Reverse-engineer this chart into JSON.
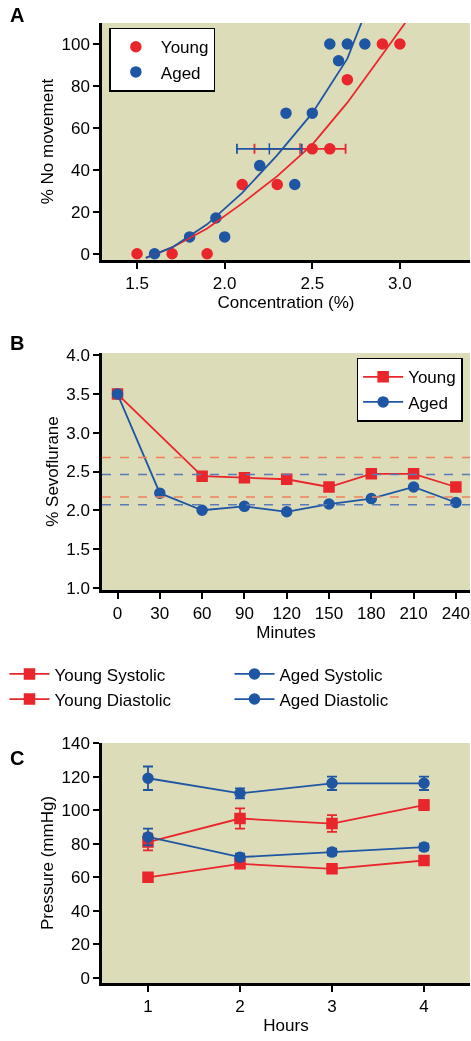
{
  "chart_data": [
    {
      "type": "scatter",
      "title": "A",
      "xlabel": "Concentration (%)",
      "ylabel": "% No movement",
      "legend": "top left",
      "marker": "circle",
      "xlim": [
        1.3,
        3.4
      ],
      "ylim": [
        -3,
        110
      ],
      "xticks": [
        1.5,
        {
          "value": 2,
          "label": "2.0"
        },
        2.5,
        {
          "value": 3,
          "label": "3.0"
        }
      ],
      "yticks": [
        0,
        20,
        40,
        60,
        80,
        100
      ],
      "series": [
        {
          "name": "Young",
          "color": "#e8262b",
          "x": [
            1.5,
            1.7,
            1.9,
            2.1,
            2.3,
            2.5,
            2.6,
            2.7,
            2.9,
            3.0
          ],
          "values": [
            0,
            0,
            0,
            33,
            33,
            50,
            50,
            83,
            100,
            100
          ]
        },
        {
          "name": "Aged",
          "color": "#1f56a3",
          "x": [
            1.6,
            1.8,
            1.95,
            2.0,
            2.2,
            2.35,
            2.4,
            2.5,
            2.6,
            2.65,
            2.7,
            2.8
          ],
          "values": [
            0,
            8,
            17,
            8,
            42,
            67,
            33,
            67,
            100,
            92,
            100,
            100
          ]
        },
        {
          "type": "line",
          "color": "#e8262b",
          "marker": "none",
          "x": [
            1.55,
            1.7,
            1.9,
            2.1,
            2.3,
            2.5,
            2.7,
            2.9,
            3.03
          ],
          "values": [
            -2,
            3,
            12,
            24,
            37,
            52,
            72,
            95,
            110
          ]
        },
        {
          "type": "line",
          "color": "#1f56a3",
          "marker": "none",
          "x": [
            1.55,
            1.7,
            1.9,
            2.1,
            2.3,
            2.5,
            2.7,
            2.78
          ],
          "values": [
            -2,
            3,
            14,
            29,
            47,
            67,
            93,
            110
          ]
        },
        {
          "type": "scatter",
          "color": "#e8262b",
          "marker": "cross",
          "x": [
            2.43
          ],
          "values": [
            50
          ],
          "xerrors": [
            [
              2.17,
              2.69
            ]
          ]
        },
        {
          "type": "scatter",
          "color": "#1f56a3",
          "marker": "cross",
          "x": [
            2.255
          ],
          "values": [
            50
          ],
          "xerrors": [
            [
              2.07,
              2.44
            ]
          ]
        }
      ]
    },
    {
      "type": "line",
      "title": "B",
      "xlabel": "Minutes",
      "ylabel": "% Sevoflurane",
      "legend": "top right",
      "xlim": [
        -11,
        250
      ],
      "ylim": [
        0.97,
        4.03
      ],
      "xticks": [
        0,
        30,
        60,
        90,
        120,
        150,
        180,
        210,
        240
      ],
      "yticks": [
        {
          "value": 1,
          "label": "1.0"
        },
        1.5,
        {
          "value": 2,
          "label": "2.0"
        },
        2.5,
        {
          "value": 3,
          "label": "3.0"
        },
        3.5,
        {
          "value": 4,
          "label": "4.0"
        }
      ],
      "series": [
        {
          "name": "Young",
          "color": "#e8262b",
          "marker": "square",
          "x": [
            0,
            60,
            90,
            120,
            150,
            180,
            210,
            240
          ],
          "values": [
            3.5,
            2.44,
            2.42,
            2.4,
            2.3,
            2.47,
            2.47,
            2.3
          ]
        },
        {
          "name": "Aged",
          "color": "#1f56a3",
          "marker": "circle",
          "x": [
            0,
            30,
            60,
            90,
            120,
            150,
            180,
            210,
            240
          ],
          "values": [
            3.5,
            2.22,
            2.0,
            2.05,
            1.98,
            2.08,
            2.15,
            2.3,
            2.1
          ]
        }
      ],
      "ref_lines": [
        {
          "axis": "y",
          "value": 2.68,
          "color": "#f0805a",
          "line_style": "dashed"
        },
        {
          "axis": "y",
          "value": 2.17,
          "color": "#f0805a",
          "line_style": "dashed"
        },
        {
          "axis": "y",
          "value": 2.46,
          "color": "#5a7ab8",
          "line_style": "dashed"
        },
        {
          "axis": "y",
          "value": 2.07,
          "color": "#5a7ab8",
          "line_style": "dashed"
        }
      ]
    },
    {
      "type": "line",
      "title": "C",
      "xlabel": "Hours",
      "ylabel": "Pressure (mmHg)",
      "legend": "top",
      "xlim": [
        0.5,
        4.5
      ],
      "ylim": [
        -3,
        140
      ],
      "xticks": [
        1,
        2,
        3,
        4
      ],
      "yticks": [
        0,
        20,
        40,
        60,
        80,
        100,
        120,
        140
      ],
      "x": [
        1,
        2,
        3,
        4
      ],
      "series": [
        {
          "name": "Young Systolic",
          "color": "#e8262b",
          "marker": "square",
          "values": [
            81,
            95,
            92,
            103
          ],
          "errors": [
            5,
            6,
            5,
            3
          ]
        },
        {
          "name": "Aged Systolic",
          "color": "#1f56a3",
          "marker": "circle",
          "values": [
            119,
            110,
            116,
            116
          ],
          "errors": [
            7,
            3,
            4,
            4
          ]
        },
        {
          "name": "Young Diastolic",
          "color": "#e8262b",
          "marker": "square",
          "values": [
            60,
            68,
            65,
            70
          ]
        },
        {
          "name": "Aged Diastolic",
          "color": "#1f56a3",
          "marker": "circle",
          "values": [
            84,
            72,
            75,
            78
          ],
          "errors": [
            5,
            2,
            2,
            2
          ]
        }
      ]
    }
  ]
}
